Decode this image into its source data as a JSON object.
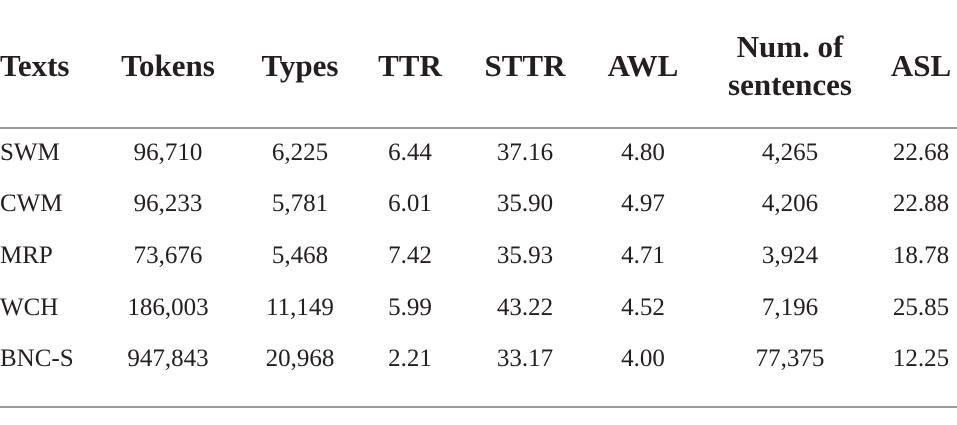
{
  "table": {
    "headers": [
      "Texts",
      "Tokens",
      "Types",
      "TTR",
      "STTR",
      "AWL",
      "Num. of sentences",
      "ASL"
    ],
    "rows": [
      [
        "SWM",
        "96,710",
        "6,225",
        "6.44",
        "37.16",
        "4.80",
        "4,265",
        "22.68"
      ],
      [
        "CWM",
        "96,233",
        "5,781",
        "6.01",
        "35.90",
        "4.97",
        "4,206",
        "22.88"
      ],
      [
        "MRP",
        "73,676",
        "5,468",
        "7.42",
        "35.93",
        "4.71",
        "3,924",
        "18.78"
      ],
      [
        "WCH",
        "186,003",
        "11,149",
        "5.99",
        "43.22",
        "4.52",
        "7,196",
        "25.85"
      ],
      [
        "BNC-S",
        "947,843",
        "20,968",
        "2.21",
        "33.17",
        "4.00",
        "77,375",
        "12.25"
      ]
    ]
  }
}
